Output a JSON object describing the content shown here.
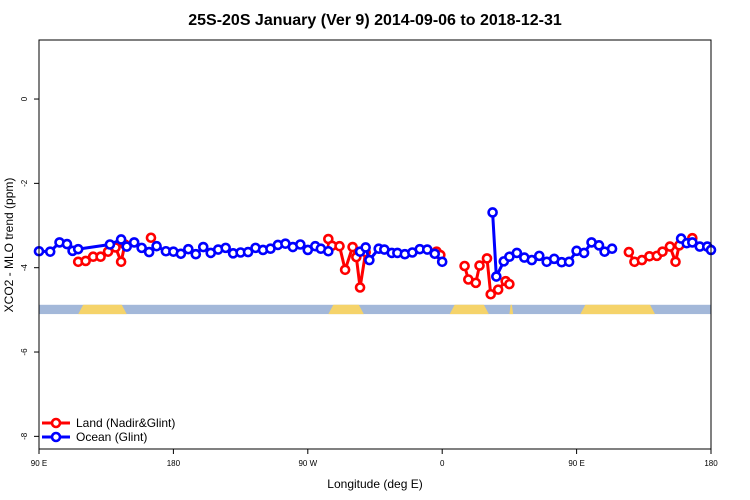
{
  "chart_data": {
    "type": "line",
    "title": "25S-20S January (Ver 9)   2014-09-06 to 2018-12-31",
    "xlabel": "Longitude (deg E)",
    "ylabel": "XCO2 - MLO trend (ppm)",
    "xlim": [
      90,
      450
    ],
    "ylim": [
      -8.3,
      1.4
    ],
    "x_ticks": [
      {
        "value": 90,
        "label": "90 E"
      },
      {
        "value": 162,
        "label": "180"
      },
      {
        "value": 234,
        "label": "90 W"
      },
      {
        "value": 306,
        "label": "0"
      },
      {
        "value": 378,
        "label": "90 E"
      },
      {
        "value": 450,
        "label": "180"
      }
    ],
    "y_ticks": [
      {
        "value": 0,
        "label": "0"
      },
      {
        "value": -2,
        "label": "-2"
      },
      {
        "value": -4,
        "label": "-4"
      },
      {
        "value": -6,
        "label": "-6"
      },
      {
        "value": -8,
        "label": "-8"
      }
    ],
    "legend": {
      "position": "bottom-left",
      "entries": [
        "Land (Nadir&Glint)",
        "Ocean (Glint)"
      ]
    },
    "series": [
      {
        "name": "Land (Nadir&Glint)",
        "color": "#ff0000",
        "segments": [
          [
            [
              111,
              -3.86
            ],
            [
              115,
              -3.84
            ],
            [
              119,
              -3.74
            ],
            [
              123,
              -3.74
            ],
            [
              127,
              -3.62
            ],
            [
              131,
              -3.52
            ],
            [
              134,
              -3.86
            ],
            [
              136,
              -3.45
            ]
          ],
          [
            [
              150,
              -3.29
            ]
          ],
          [
            [
              245,
              -3.32
            ],
            [
              247,
              -3.48
            ],
            [
              251,
              -3.49
            ],
            [
              254,
              -4.05
            ],
            [
              258,
              -3.51
            ],
            [
              260,
              -3.75
            ],
            [
              262,
              -4.47
            ],
            [
              265,
              -3.63
            ]
          ],
          [
            [
              303,
              -3.62
            ],
            [
              305,
              -3.7
            ]
          ],
          [
            [
              318,
              -3.96
            ],
            [
              320,
              -4.28
            ],
            [
              324,
              -4.36
            ],
            [
              326,
              -3.95
            ],
            [
              330,
              -3.78
            ],
            [
              332,
              -4.63
            ],
            [
              336,
              -4.52
            ],
            [
              340,
              -4.32
            ],
            [
              342,
              -4.39
            ]
          ],
          [
            [
              406,
              -3.63
            ],
            [
              409,
              -3.86
            ],
            [
              413,
              -3.82
            ],
            [
              417,
              -3.73
            ],
            [
              421,
              -3.72
            ],
            [
              424,
              -3.62
            ],
            [
              428,
              -3.5
            ],
            [
              431,
              -3.86
            ],
            [
              433,
              -3.47
            ]
          ],
          [
            [
              440,
              -3.3
            ]
          ]
        ]
      },
      {
        "name": "Ocean (Glint)",
        "color": "#0000ff",
        "segments": [
          [
            [
              90,
              -3.61
            ],
            [
              96,
              -3.62
            ],
            [
              101,
              -3.4
            ],
            [
              105,
              -3.44
            ],
            [
              108,
              -3.6
            ],
            [
              111,
              -3.56
            ],
            [
              128,
              -3.45
            ],
            [
              134,
              -3.33
            ],
            [
              137,
              -3.5
            ],
            [
              141,
              -3.4
            ],
            [
              145,
              -3.53
            ],
            [
              149,
              -3.63
            ],
            [
              153,
              -3.49
            ],
            [
              158,
              -3.61
            ],
            [
              162,
              -3.62
            ],
            [
              166,
              -3.67
            ],
            [
              170,
              -3.56
            ],
            [
              174,
              -3.68
            ],
            [
              178,
              -3.51
            ],
            [
              182,
              -3.65
            ],
            [
              186,
              -3.57
            ],
            [
              190,
              -3.53
            ],
            [
              194,
              -3.66
            ],
            [
              198,
              -3.64
            ],
            [
              202,
              -3.63
            ],
            [
              206,
              -3.53
            ],
            [
              210,
              -3.58
            ],
            [
              214,
              -3.55
            ],
            [
              218,
              -3.46
            ],
            [
              222,
              -3.43
            ],
            [
              226,
              -3.51
            ],
            [
              230,
              -3.45
            ],
            [
              234,
              -3.58
            ],
            [
              238,
              -3.49
            ],
            [
              241,
              -3.55
            ],
            [
              245,
              -3.61
            ]
          ],
          [
            [
              262,
              -3.62
            ],
            [
              265,
              -3.52
            ],
            [
              267,
              -3.82
            ],
            [
              272,
              -3.55
            ],
            [
              275,
              -3.57
            ],
            [
              279,
              -3.65
            ],
            [
              282,
              -3.65
            ],
            [
              286,
              -3.68
            ],
            [
              290,
              -3.64
            ],
            [
              294,
              -3.56
            ],
            [
              298,
              -3.57
            ],
            [
              302,
              -3.67
            ],
            [
              306,
              -3.86
            ]
          ],
          [
            [
              333,
              -2.69
            ],
            [
              335,
              -4.21
            ],
            [
              339,
              -3.85
            ],
            [
              342,
              -3.74
            ],
            [
              346,
              -3.65
            ],
            [
              350,
              -3.76
            ],
            [
              354,
              -3.82
            ],
            [
              358,
              -3.72
            ],
            [
              362,
              -3.86
            ],
            [
              366,
              -3.79
            ],
            [
              370,
              -3.87
            ],
            [
              374,
              -3.86
            ],
            [
              378,
              -3.6
            ],
            [
              382,
              -3.65
            ],
            [
              386,
              -3.4
            ],
            [
              390,
              -3.47
            ],
            [
              393,
              -3.62
            ],
            [
              397,
              -3.55
            ]
          ],
          [
            [
              434,
              -3.31
            ],
            [
              437,
              -3.42
            ],
            [
              440,
              -3.4
            ],
            [
              444,
              -3.5
            ],
            [
              448,
              -3.5
            ],
            [
              450,
              -3.58
            ]
          ]
        ]
      }
    ],
    "surface_bar": {
      "y_range": [
        -4.88,
        -5.1
      ],
      "ocean_color": "#a3b8d9",
      "land_color": "#f5d36a",
      "land_x_ranges": [
        [
          111,
          137
        ],
        [
          245,
          264
        ],
        [
          310,
          331
        ],
        [
          342,
          344
        ],
        [
          380,
          420
        ]
      ]
    }
  }
}
